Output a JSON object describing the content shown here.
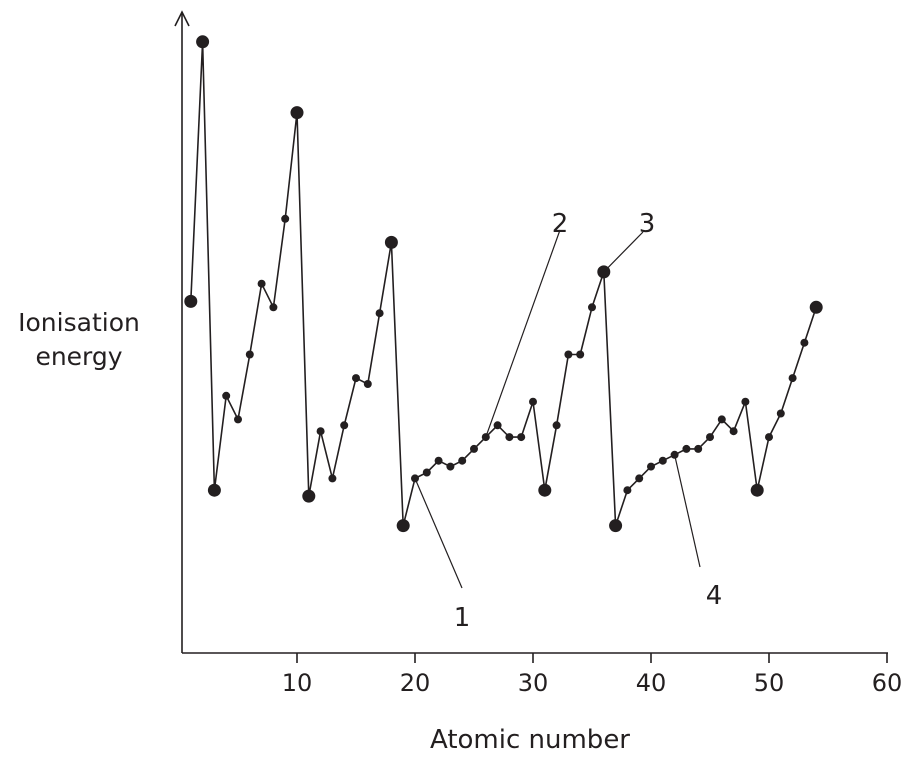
{
  "chart_data": {
    "type": "line",
    "xlabel": "Atomic number",
    "ylabel_lines": [
      "Ionisation",
      "energy"
    ],
    "xlim": [
      0,
      60
    ],
    "ylim": [
      0,
      100
    ],
    "xticks": [
      10,
      20,
      30,
      40,
      50,
      60
    ],
    "y_ticks_shown": false,
    "grid": false,
    "point_size_note": "noble gases and alkali metals drawn as large dots",
    "series": [
      {
        "x": [
          1,
          2,
          3,
          4,
          5,
          6,
          7,
          8,
          9,
          10,
          11,
          12,
          13,
          14,
          15,
          16,
          17,
          18,
          19,
          20,
          21,
          22,
          23,
          24,
          25,
          26,
          27,
          28,
          29,
          30,
          31,
          32,
          33,
          34,
          35,
          36,
          37,
          38,
          39,
          40,
          41,
          42,
          43,
          44,
          45,
          46,
          47,
          48,
          49,
          50,
          51,
          52,
          53,
          54
        ],
        "y": [
          54,
          98,
          22,
          38,
          34,
          45,
          57,
          53,
          68,
          86,
          21,
          32,
          24,
          33,
          41,
          40,
          52,
          64,
          16,
          24,
          25,
          27,
          26,
          27,
          29,
          31,
          33,
          31,
          31,
          37,
          22,
          33,
          45,
          45,
          53,
          59,
          16,
          22,
          24,
          26,
          27,
          28,
          29,
          29,
          31,
          34,
          32,
          37,
          22,
          31,
          35,
          41,
          47,
          53
        ],
        "large_points": [
          1,
          2,
          3,
          10,
          11,
          18,
          19,
          31,
          36,
          37,
          49,
          54
        ]
      }
    ],
    "annotations": [
      {
        "label": "1",
        "target_x": 20
      },
      {
        "label": "2",
        "target_x": 26
      },
      {
        "label": "3",
        "target_x": 36
      },
      {
        "label": "4",
        "target_x": 42
      }
    ]
  }
}
